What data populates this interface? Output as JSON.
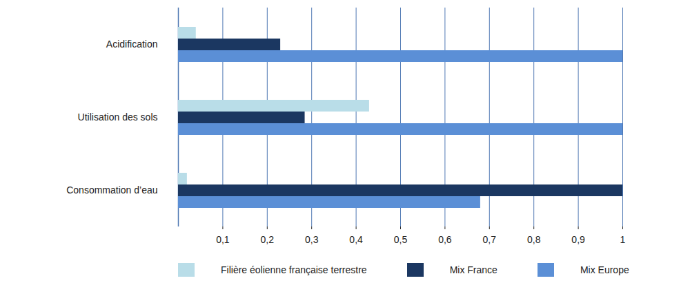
{
  "chart_data": {
    "type": "bar",
    "orientation": "horizontal",
    "categories": [
      "Acidification",
      "Utilisation des sols",
      "Consommation d’eau"
    ],
    "series": [
      {
        "name": "Filière éolienne française terrestre",
        "color": "#b9dde8",
        "values": [
          0.04,
          0.43,
          0.02
        ]
      },
      {
        "name": "Mix France",
        "color": "#1b3761",
        "values": [
          0.23,
          0.285,
          1.0
        ]
      },
      {
        "name": "Mix Europe",
        "color": "#5b8fd6",
        "values": [
          1.0,
          1.0,
          0.68
        ]
      }
    ],
    "xlim": [
      0,
      1
    ],
    "xticks": [
      {
        "value": 0.1,
        "label": "0,1"
      },
      {
        "value": 0.2,
        "label": "0,2"
      },
      {
        "value": 0.3,
        "label": "0,3"
      },
      {
        "value": 0.4,
        "label": "0,4"
      },
      {
        "value": 0.5,
        "label": "0,5"
      },
      {
        "value": 0.6,
        "label": "0,6"
      },
      {
        "value": 0.7,
        "label": "0,7"
      },
      {
        "value": 0.8,
        "label": "0,8"
      },
      {
        "value": 0.9,
        "label": "0,9"
      },
      1
    ],
    "grid": true,
    "legend": "bottom"
  }
}
